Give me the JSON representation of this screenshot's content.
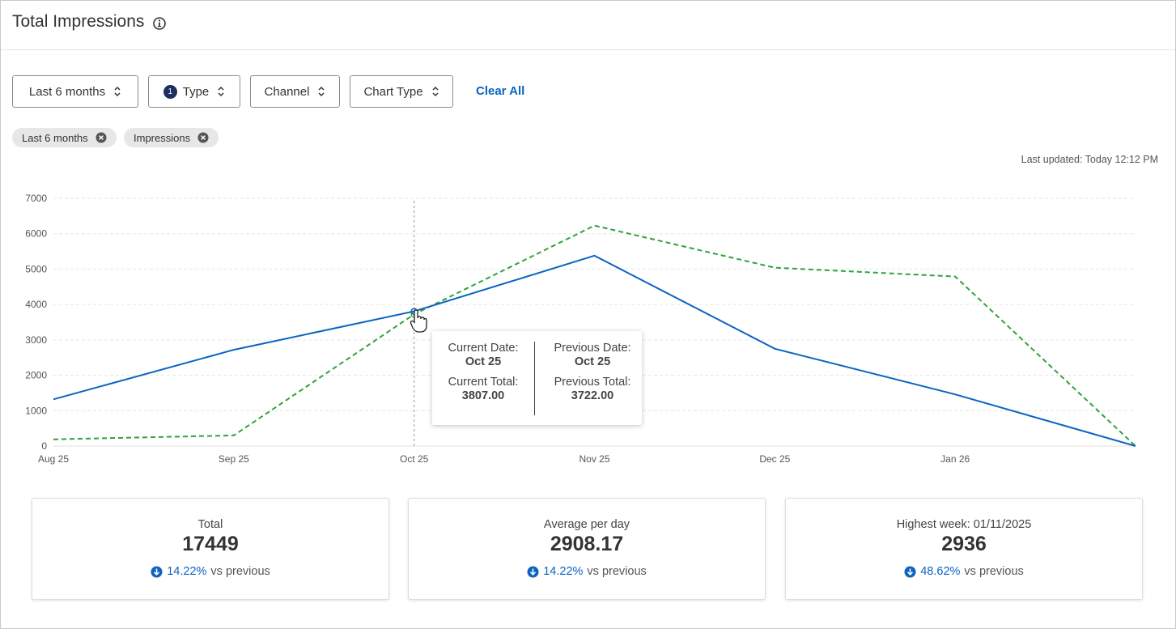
{
  "header": {
    "title": "Total Impressions",
    "info_icon": "info-circle-icon"
  },
  "filters": [
    {
      "label": "Last 6 months",
      "badge": ""
    },
    {
      "label": "Type",
      "badge": "1"
    },
    {
      "label": "Channel",
      "badge": ""
    },
    {
      "label": "Chart Type",
      "badge": ""
    }
  ],
  "clear_all": "Clear All",
  "chips": [
    {
      "label": "Last 6 months"
    },
    {
      "label": "Impressions"
    }
  ],
  "last_updated": "Last updated: Today 12:12 PM",
  "colors": {
    "current": "#0b64c0",
    "previous": "#2fa33a",
    "accent": "#0b64c0"
  },
  "chart_data": {
    "type": "line",
    "categories": [
      "Aug 25",
      "Sep 25",
      "Oct 25",
      "Nov 25",
      "Dec 25",
      "Jan 26",
      ""
    ],
    "yticks": [
      "0",
      "1000",
      "2000",
      "3000",
      "4000",
      "5000",
      "6000",
      "7000"
    ],
    "ylim": [
      0,
      7000
    ],
    "grid": true,
    "series": [
      {
        "key": "current",
        "values": [
          1320,
          2720,
          3807,
          5380,
          2750,
          1460,
          0
        ],
        "style": "solid"
      },
      {
        "key": "previous",
        "values": [
          190,
          300,
          3722,
          6230,
          5040,
          4790,
          0
        ],
        "style": "dashed"
      }
    ],
    "hover_index": 2
  },
  "tooltip": {
    "current_date_label": "Current Date:",
    "current_date": "Oct 25",
    "current_total_label": "Current Total:",
    "current_total": "3807.00",
    "previous_date_label": "Previous Date:",
    "previous_date": "Oct 25",
    "previous_total_label": "Previous Total:",
    "previous_total": "3722.00"
  },
  "cards": [
    {
      "label": "Total",
      "value": "17449",
      "delta": "14.22%",
      "vs": "vs previous",
      "icon": "arrow-down-circle-icon"
    },
    {
      "label": "Average per day",
      "value": "2908.17",
      "delta": "14.22%",
      "vs": "vs previous",
      "icon": "arrow-down-circle-icon"
    },
    {
      "label": "Highest week: 01/11/2025",
      "value": "2936",
      "delta": "48.62%",
      "vs": "vs previous",
      "icon": "arrow-down-circle-icon"
    }
  ]
}
